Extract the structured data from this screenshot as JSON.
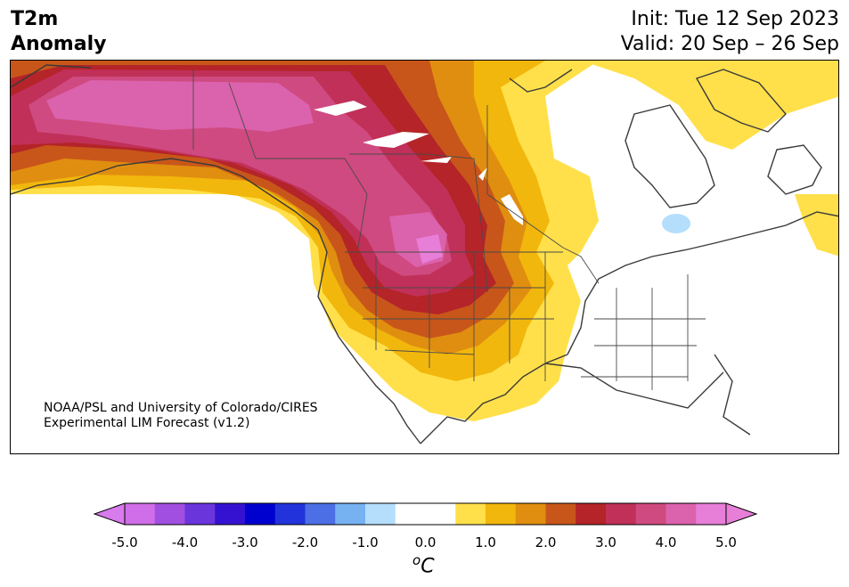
{
  "header": {
    "title_line1": "T2m",
    "title_line2": "Anomaly",
    "init": "Init: Tue 12 Sep 2023",
    "valid": "Valid: 20 Sep – 26 Sep"
  },
  "credit": {
    "line1": "NOAA/PSL and University of Colorado/CIRES",
    "line2": "Experimental LIM Forecast (v1.2)"
  },
  "colorbar": {
    "unit_base": "C",
    "unit_sup": "o",
    "tick_labels": [
      "-5.0",
      "-4.0",
      "-3.0",
      "-2.0",
      "-1.0",
      "0.0",
      "1.0",
      "2.0",
      "3.0",
      "4.0",
      "5.0"
    ],
    "colors": [
      "#cf6ee8",
      "#a04fe0",
      "#6b35dc",
      "#3512d2",
      "#0000cf",
      "#2233db",
      "#4d6fe5",
      "#76b1f2",
      "#b4defc",
      "#ffffff",
      "#ffffff",
      "#ffe04a",
      "#f2b70c",
      "#e08e10",
      "#c8561a",
      "#b42428",
      "#c03058",
      "#cf4a80",
      "#db62ac",
      "#e77ed8"
    ],
    "extend_low_color": "#d77bed",
    "extend_high_color": "#e77ed8"
  },
  "map": {
    "region": "North America",
    "variable": "2m temperature anomaly",
    "anomaly_colors": {
      "plus_0p5": "#ffe04a",
      "plus_1p0": "#f2b70c",
      "plus_1p5": "#e08e10",
      "plus_2p0": "#c8561a",
      "plus_2p5": "#b42428",
      "plus_3p0": "#c03058",
      "plus_3p5": "#cf4a80",
      "plus_4p0": "#db62ac",
      "plus_4p5": "#e77ed8",
      "neutral": "#ffffff",
      "minus_1p0": "#b4defc"
    }
  }
}
